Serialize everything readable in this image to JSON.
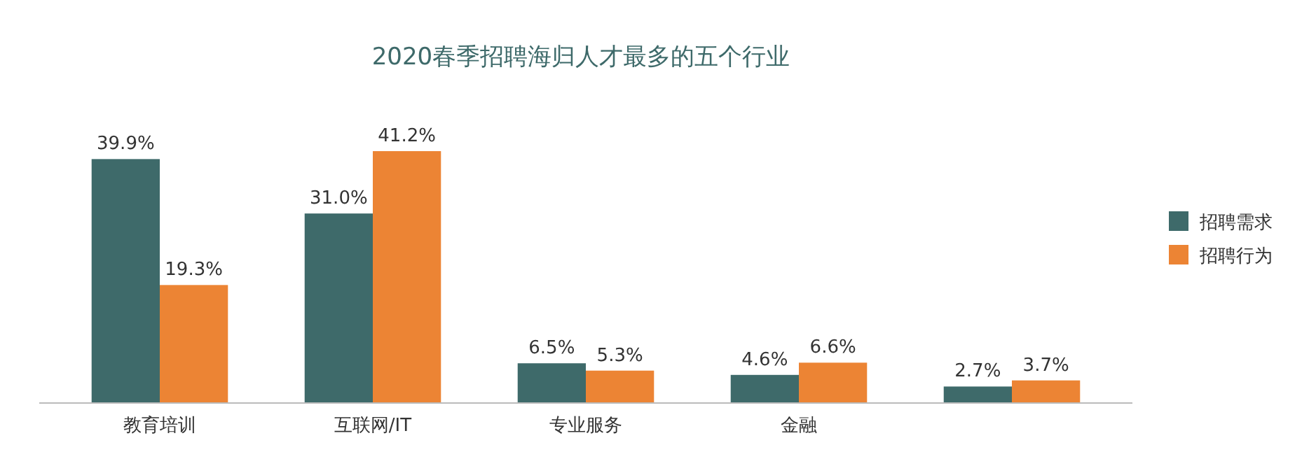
{
  "chart_data": {
    "type": "bar",
    "title": "2020春季招聘海归人才最多的五个行业",
    "categories": [
      "教育培训",
      "互联网/IT",
      "专业服务",
      "金融",
      null
    ],
    "series": [
      {
        "name": "招聘需求",
        "color": "#3e6a6a",
        "values": [
          39.9,
          31.0,
          6.5,
          4.6,
          2.7
        ],
        "value_labels": [
          "39.9%",
          "31.0%",
          "6.5%",
          "4.6%",
          "2.7%"
        ]
      },
      {
        "name": "招聘行为",
        "color": "#ec8434",
        "values": [
          19.3,
          41.2,
          5.3,
          6.6,
          3.7
        ],
        "value_labels": [
          "19.3%",
          "41.2%",
          "5.3%",
          "6.6%",
          "3.7%"
        ]
      }
    ],
    "ylim": [
      0,
      41.2
    ],
    "legend": "right",
    "grid": false
  }
}
